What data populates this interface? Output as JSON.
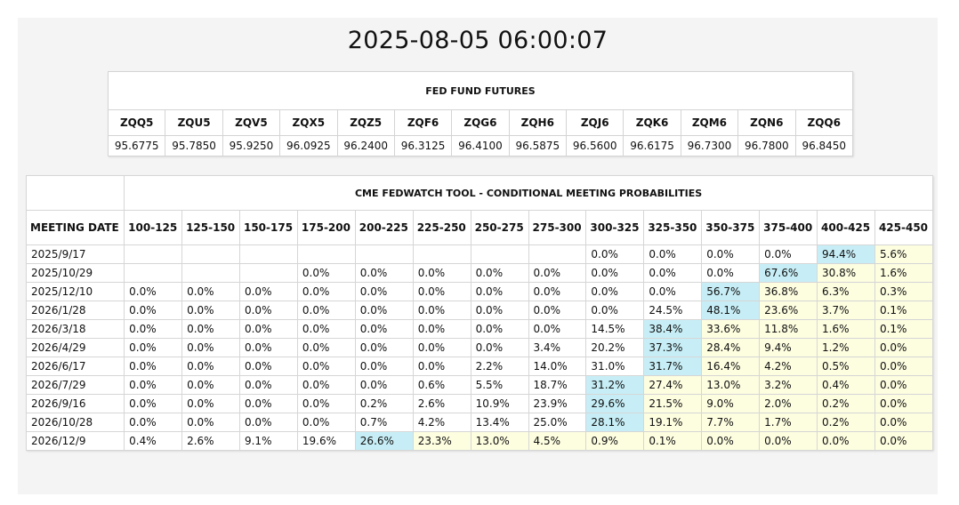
{
  "timestamp": "2025-08-05 06:00:07",
  "futures": {
    "title": "FED FUND FUTURES",
    "contracts": [
      {
        "code": "ZQQ5",
        "price": "95.6775"
      },
      {
        "code": "ZQU5",
        "price": "95.7850"
      },
      {
        "code": "ZQV5",
        "price": "95.9250"
      },
      {
        "code": "ZQX5",
        "price": "96.0925"
      },
      {
        "code": "ZQZ5",
        "price": "96.2400"
      },
      {
        "code": "ZQF6",
        "price": "96.3125"
      },
      {
        "code": "ZQG6",
        "price": "96.4100"
      },
      {
        "code": "ZQH6",
        "price": "96.5875"
      },
      {
        "code": "ZQJ6",
        "price": "96.5600"
      },
      {
        "code": "ZQK6",
        "price": "96.6175"
      },
      {
        "code": "ZQM6",
        "price": "96.7300"
      },
      {
        "code": "ZQN6",
        "price": "96.7800"
      },
      {
        "code": "ZQQ6",
        "price": "96.8450"
      }
    ]
  },
  "fedwatch": {
    "title": "CME FEDWATCH TOOL - CONDITIONAL MEETING PROBABILITIES",
    "date_header": "MEETING DATE",
    "ranges": [
      "100-125",
      "125-150",
      "150-175",
      "175-200",
      "200-225",
      "225-250",
      "250-275",
      "275-300",
      "300-325",
      "325-350",
      "350-375",
      "375-400",
      "400-425",
      "425-450"
    ],
    "rows": [
      {
        "date": "2025/9/17",
        "values": [
          "",
          "",
          "",
          "",
          "",
          "",
          "",
          "",
          "0.0%",
          "0.0%",
          "0.0%",
          "0.0%",
          "94.4%",
          "5.6%"
        ],
        "highlight": 12
      },
      {
        "date": "2025/10/29",
        "values": [
          "",
          "",
          "",
          "0.0%",
          "0.0%",
          "0.0%",
          "0.0%",
          "0.0%",
          "0.0%",
          "0.0%",
          "0.0%",
          "67.6%",
          "30.8%",
          "1.6%"
        ],
        "highlight": 11
      },
      {
        "date": "2025/12/10",
        "values": [
          "0.0%",
          "0.0%",
          "0.0%",
          "0.0%",
          "0.0%",
          "0.0%",
          "0.0%",
          "0.0%",
          "0.0%",
          "0.0%",
          "56.7%",
          "36.8%",
          "6.3%",
          "0.3%"
        ],
        "highlight": 10
      },
      {
        "date": "2026/1/28",
        "values": [
          "0.0%",
          "0.0%",
          "0.0%",
          "0.0%",
          "0.0%",
          "0.0%",
          "0.0%",
          "0.0%",
          "0.0%",
          "24.5%",
          "48.1%",
          "23.6%",
          "3.7%",
          "0.1%"
        ],
        "highlight": 10
      },
      {
        "date": "2026/3/18",
        "values": [
          "0.0%",
          "0.0%",
          "0.0%",
          "0.0%",
          "0.0%",
          "0.0%",
          "0.0%",
          "0.0%",
          "14.5%",
          "38.4%",
          "33.6%",
          "11.8%",
          "1.6%",
          "0.1%"
        ],
        "highlight": 9
      },
      {
        "date": "2026/4/29",
        "values": [
          "0.0%",
          "0.0%",
          "0.0%",
          "0.0%",
          "0.0%",
          "0.0%",
          "0.0%",
          "3.4%",
          "20.2%",
          "37.3%",
          "28.4%",
          "9.4%",
          "1.2%",
          "0.0%"
        ],
        "highlight": 9
      },
      {
        "date": "2026/6/17",
        "values": [
          "0.0%",
          "0.0%",
          "0.0%",
          "0.0%",
          "0.0%",
          "0.0%",
          "2.2%",
          "14.0%",
          "31.0%",
          "31.7%",
          "16.4%",
          "4.2%",
          "0.5%",
          "0.0%"
        ],
        "highlight": 9
      },
      {
        "date": "2026/7/29",
        "values": [
          "0.0%",
          "0.0%",
          "0.0%",
          "0.0%",
          "0.0%",
          "0.6%",
          "5.5%",
          "18.7%",
          "31.2%",
          "27.4%",
          "13.0%",
          "3.2%",
          "0.4%",
          "0.0%"
        ],
        "highlight": 8
      },
      {
        "date": "2026/9/16",
        "values": [
          "0.0%",
          "0.0%",
          "0.0%",
          "0.0%",
          "0.2%",
          "2.6%",
          "10.9%",
          "23.9%",
          "29.6%",
          "21.5%",
          "9.0%",
          "2.0%",
          "0.2%",
          "0.0%"
        ],
        "highlight": 8
      },
      {
        "date": "2026/10/28",
        "values": [
          "0.0%",
          "0.0%",
          "0.0%",
          "0.0%",
          "0.7%",
          "4.2%",
          "13.4%",
          "25.0%",
          "28.1%",
          "19.1%",
          "7.7%",
          "1.7%",
          "0.2%",
          "0.0%"
        ],
        "highlight": 8
      },
      {
        "date": "2026/12/9",
        "values": [
          "0.4%",
          "2.6%",
          "9.1%",
          "19.6%",
          "26.6%",
          "23.3%",
          "13.0%",
          "4.5%",
          "0.9%",
          "0.1%",
          "0.0%",
          "0.0%",
          "0.0%",
          "0.0%"
        ],
        "highlight": 4
      }
    ]
  },
  "colors": {
    "highlight": "#c7eef6",
    "shaded": "#fdfde0"
  }
}
